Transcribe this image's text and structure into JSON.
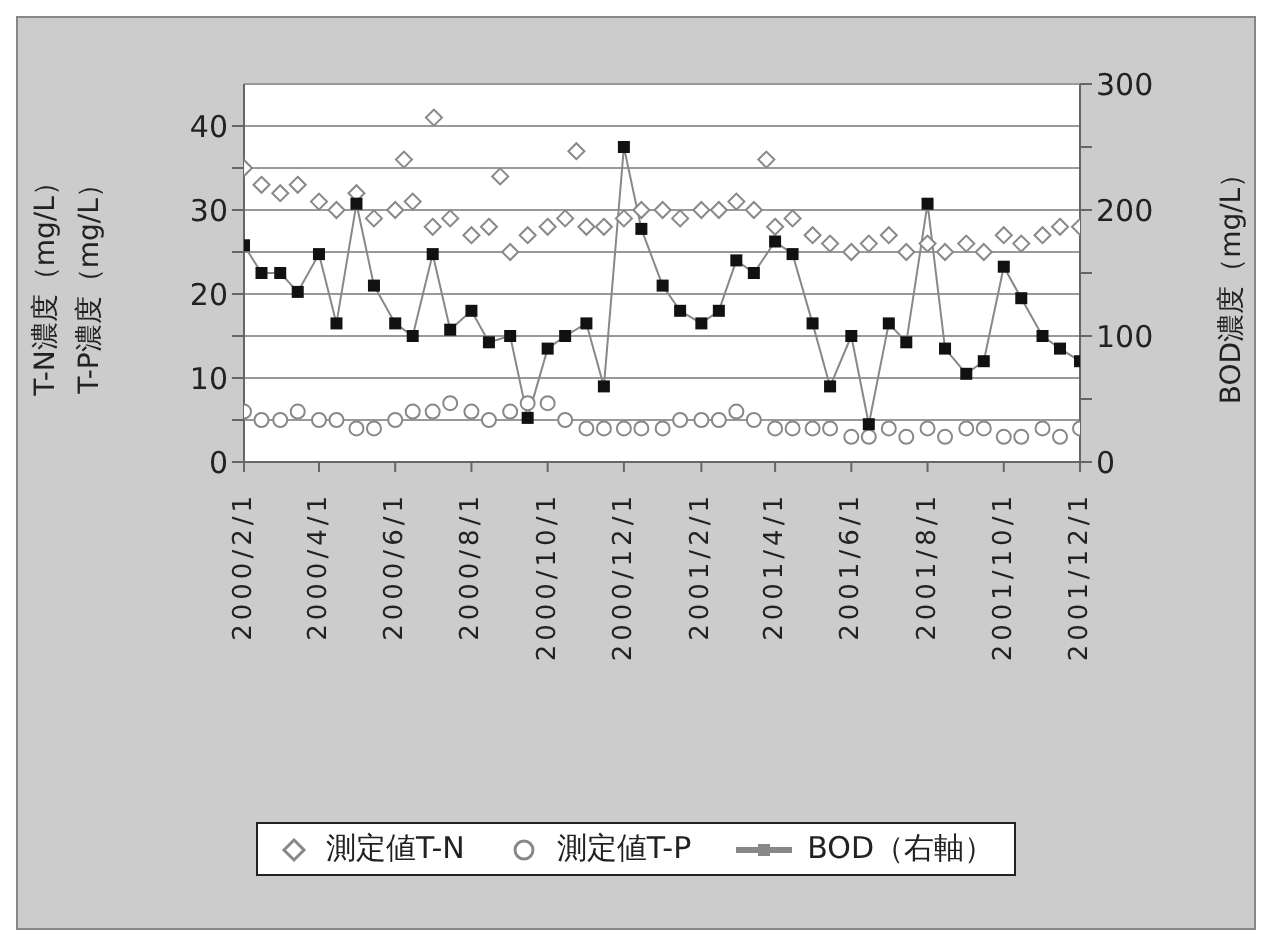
{
  "chart_data": {
    "type": "scatter",
    "ylabel": "T-N濃度（mg/L）\nT-P濃度（mg/L）",
    "y2label": "BOD濃度（mg/L）",
    "xlim": [
      "2000-02-01",
      "2001-12-01"
    ],
    "xticks": [
      {
        "value": "2000-02-01",
        "label": "2000/2/1"
      },
      {
        "value": "2000-04-01",
        "label": "2000/4/1"
      },
      {
        "value": "2000-06-01",
        "label": "2000/6/1"
      },
      {
        "value": "2000-08-01",
        "label": "2000/8/1"
      },
      {
        "value": "2000-10-01",
        "label": "2000/10/1"
      },
      {
        "value": "2000-12-01",
        "label": "2000/12/1"
      },
      {
        "value": "2001-02-01",
        "label": "2001/2/1"
      },
      {
        "value": "2001-04-01",
        "label": "2001/4/1"
      },
      {
        "value": "2001-06-01",
        "label": "2001/6/1"
      },
      {
        "value": "2001-08-01",
        "label": "2001/8/1"
      },
      {
        "value": "2001-10-01",
        "label": "2001/10/1"
      },
      {
        "value": "2001-12-01",
        "label": "2001/12/1"
      }
    ],
    "ylim": [
      0,
      45
    ],
    "yticks": [
      0,
      {
        "value": 5,
        "label": null
      },
      10,
      {
        "value": 15,
        "label": null
      },
      20,
      {
        "value": 25,
        "label": null
      },
      30,
      {
        "value": 35,
        "label": null
      },
      40
    ],
    "y2lim": [
      0,
      300
    ],
    "y2ticks": [
      0,
      {
        "value": 50,
        "label": null
      },
      100,
      {
        "value": 150,
        "label": null
      },
      200,
      {
        "value": 250,
        "label": null
      },
      300
    ],
    "grid": "y",
    "legend": "bottom",
    "x": [
      "2000-02-01",
      "2000-02-15",
      "2000-03-01",
      "2000-03-15",
      "2000-04-01",
      "2000-04-15",
      "2000-05-01",
      "2000-05-15",
      "2000-06-01",
      "2000-06-15",
      "2000-07-01",
      "2000-07-15",
      "2000-08-01",
      "2000-08-15",
      "2000-09-01",
      "2000-09-15",
      "2000-10-01",
      "2000-10-15",
      "2000-11-01",
      "2000-11-15",
      "2000-12-01",
      "2000-12-15",
      "2001-01-01",
      "2001-01-15",
      "2001-02-01",
      "2001-02-15",
      "2001-03-01",
      "2001-03-15",
      "2001-04-01",
      "2001-04-15",
      "2001-05-01",
      "2001-05-15",
      "2001-06-01",
      "2001-06-15",
      "2001-07-01",
      "2001-07-15",
      "2001-08-01",
      "2001-08-15",
      "2001-09-01",
      "2001-09-15",
      "2001-10-01",
      "2001-10-15",
      "2001-11-01",
      "2001-11-15",
      "2001-12-01"
    ],
    "series": [
      {
        "name": "測定値T-N",
        "marker": "diamond",
        "color": "#888888",
        "values": [
          35,
          33,
          32,
          33,
          31,
          30,
          32,
          29,
          30,
          31,
          28,
          29,
          27,
          28,
          25,
          27,
          28,
          29,
          28,
          28,
          29,
          30,
          30,
          29,
          30,
          30,
          31,
          30,
          28,
          29,
          27,
          26,
          25,
          26,
          27,
          25,
          26,
          25,
          26,
          25,
          27,
          26,
          27,
          28,
          28
        ]
      },
      {
        "name": "測定値T-P",
        "marker": "circle",
        "color": "#888888",
        "values": [
          6,
          5,
          5,
          6,
          5,
          5,
          4,
          4,
          5,
          6,
          6,
          7,
          6,
          5,
          6,
          7,
          7,
          5,
          4,
          4,
          4,
          4,
          4,
          5,
          5,
          5,
          6,
          5,
          4,
          4,
          4,
          4,
          3,
          3,
          4,
          3,
          4,
          3,
          4,
          4,
          3,
          3,
          4,
          3,
          4
        ]
      },
      {
        "name": "BOD（右軸）",
        "type": "line",
        "axis": "y2",
        "marker": "square",
        "color": "#888888",
        "values": [
          172,
          150,
          150,
          135,
          165,
          110,
          205,
          140,
          110,
          100,
          165,
          105,
          120,
          95,
          100,
          35,
          90,
          100,
          110,
          60,
          250,
          185,
          140,
          120,
          110,
          120,
          160,
          150,
          175,
          165,
          110,
          60,
          100,
          30,
          110,
          95,
          205,
          90,
          70,
          80,
          155,
          130,
          100,
          90,
          80
        ]
      },
      {
        "marker": "diamond",
        "color": "#888888",
        "x": [
          "2000-06-08",
          "2000-07-02",
          "2000-08-24",
          "2000-10-24",
          "2001-03-25"
        ],
        "values": [
          36,
          41,
          34,
          37,
          36
        ]
      }
    ]
  }
}
